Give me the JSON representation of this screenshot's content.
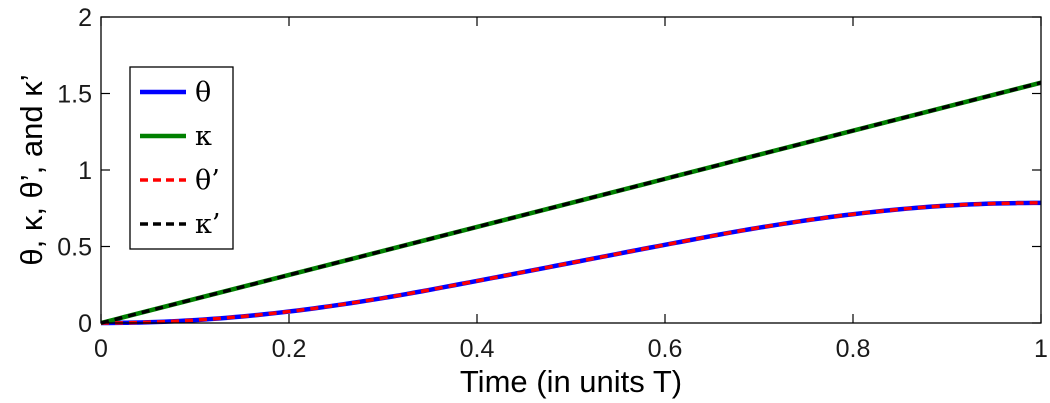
{
  "chart_data": {
    "type": "line",
    "xlabel": "Time (in units T)",
    "ylabel": "θ, κ, θ’, and κ’",
    "xlim": [
      0,
      1
    ],
    "ylim": [
      0,
      2
    ],
    "x_ticks": [
      0,
      0.2,
      0.4,
      0.6,
      0.8,
      1
    ],
    "y_ticks": [
      0,
      0.5,
      1,
      1.5,
      2
    ],
    "x_tick_labels": [
      "0",
      "0.2",
      "0.4",
      "0.6",
      "0.8",
      "1"
    ],
    "y_tick_labels": [
      "0",
      "0.5",
      "1",
      "1.5",
      "2"
    ],
    "grid": false,
    "legend_position": "top-left",
    "x": [
      0,
      0.1,
      0.2,
      0.3,
      0.4,
      0.5,
      0.6,
      0.7,
      0.8,
      0.9,
      1.0
    ],
    "series": [
      {
        "name": "θ",
        "color": "#0000ff",
        "dashed": false,
        "values": [
          0,
          0.019,
          0.075,
          0.163,
          0.275,
          0.393,
          0.511,
          0.623,
          0.711,
          0.767,
          0.785
        ]
      },
      {
        "name": "κ",
        "color": "#008000",
        "dashed": false,
        "values": [
          0,
          0.157,
          0.314,
          0.471,
          0.628,
          0.785,
          0.942,
          1.1,
          1.257,
          1.414,
          1.571
        ]
      },
      {
        "name": "θ’",
        "color": "#ff0000",
        "dashed": true,
        "values": [
          0,
          0.019,
          0.075,
          0.163,
          0.275,
          0.393,
          0.511,
          0.623,
          0.711,
          0.767,
          0.785
        ]
      },
      {
        "name": "κ’",
        "color": "#000000",
        "dashed": true,
        "values": [
          0,
          0.157,
          0.314,
          0.471,
          0.628,
          0.785,
          0.942,
          1.1,
          1.257,
          1.414,
          1.571
        ]
      }
    ]
  }
}
